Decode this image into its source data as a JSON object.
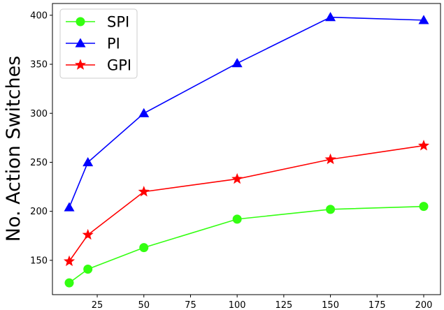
{
  "chart_data": {
    "type": "line",
    "title": "",
    "xlabel": "",
    "ylabel": "No. Action Switches",
    "xlim": [
      1,
      209
    ],
    "ylim": [
      115,
      412
    ],
    "xticks": [
      25,
      50,
      75,
      100,
      125,
      150,
      175,
      200
    ],
    "yticks": [
      150,
      200,
      250,
      300,
      350,
      400
    ],
    "grid": false,
    "legend_position": "top-left",
    "x": [
      10,
      20,
      50,
      100,
      150,
      200
    ],
    "series": [
      {
        "name": "SPI",
        "values": [
          127,
          141,
          163,
          192,
          202,
          205
        ],
        "color": "#33ff11",
        "marker": "circle"
      },
      {
        "name": "PI",
        "values": [
          204,
          250,
          300,
          351,
          398,
          395
        ],
        "color": "#0000ff",
        "marker": "triangle"
      },
      {
        "name": "GPI",
        "values": [
          149,
          176,
          220,
          233,
          253,
          267
        ],
        "color": "#ff0000",
        "marker": "star"
      }
    ]
  }
}
